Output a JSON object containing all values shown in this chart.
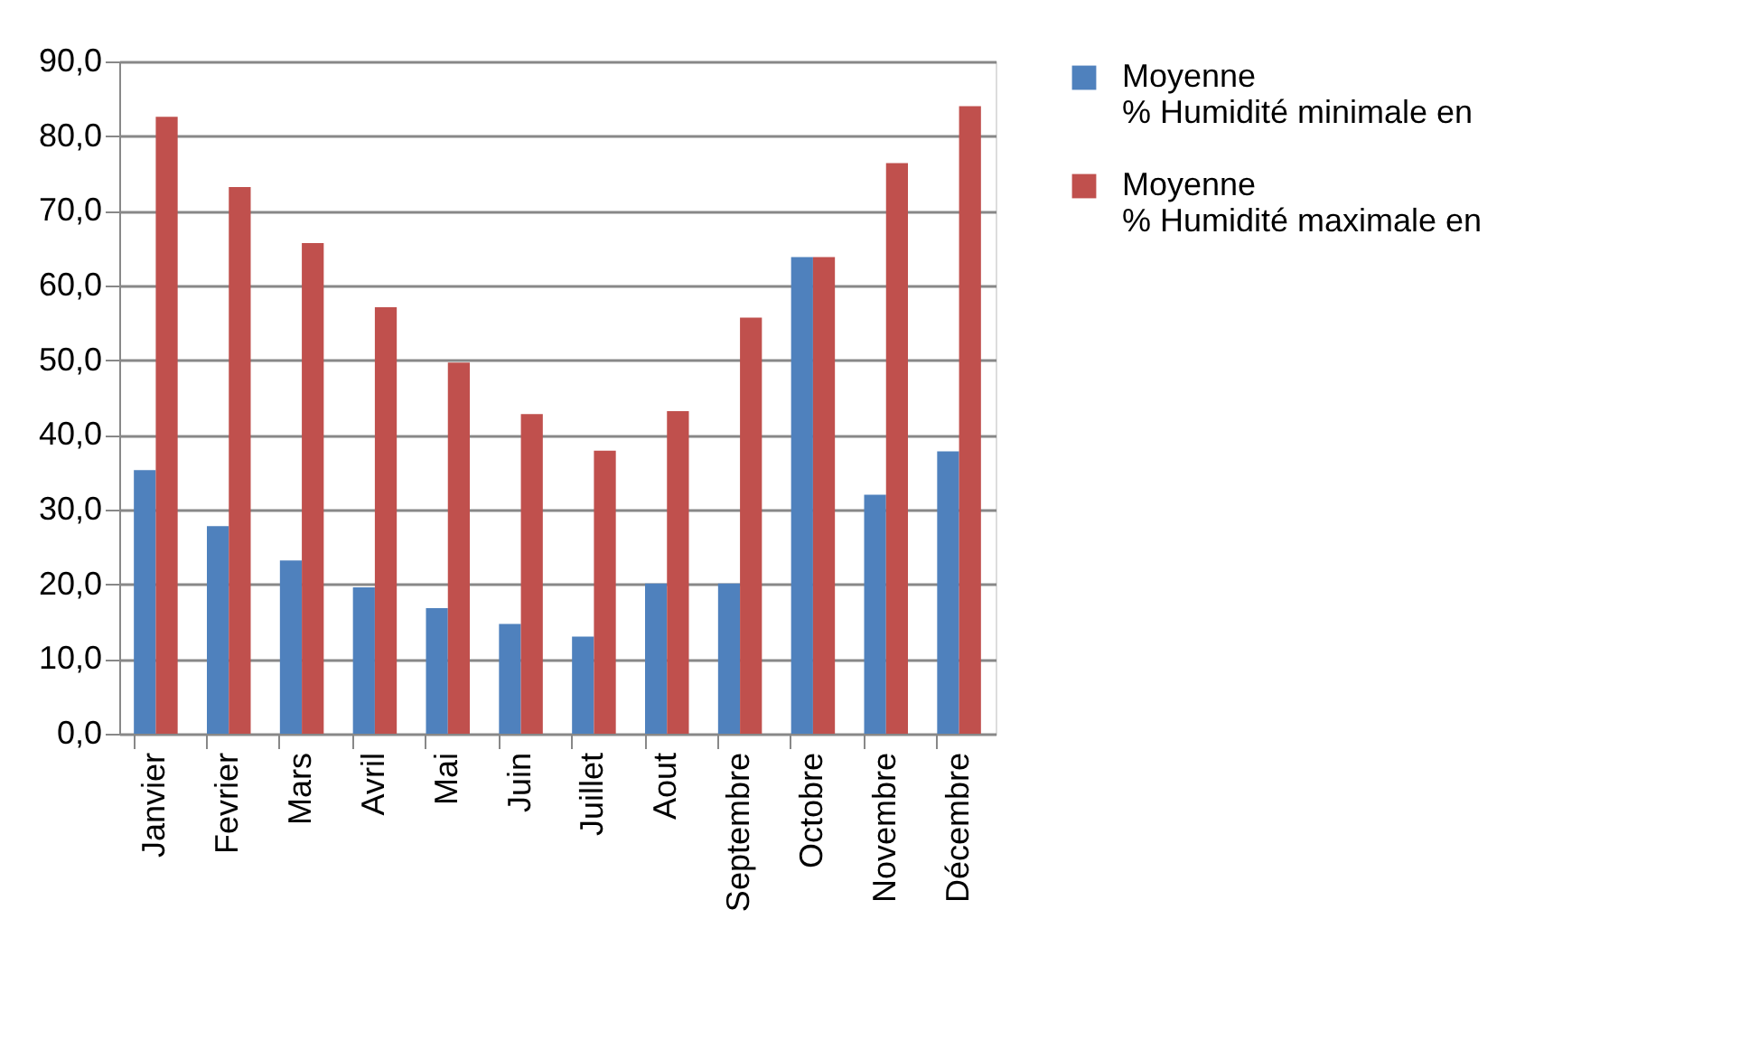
{
  "chart_data": {
    "type": "bar",
    "categories": [
      "Janvier",
      "Fevrier",
      "Mars",
      "Avril",
      "Mai",
      "Juin",
      "Juillet",
      "Aout",
      "Septembre",
      "Octobre",
      "Novembre",
      "Décembre"
    ],
    "series": [
      {
        "name": "Moyenne % Humidité minimale en",
        "color": "#4f81bd",
        "values": [
          35.3,
          27.8,
          23.2,
          19.6,
          16.8,
          14.7,
          13.0,
          20.1,
          20.1,
          63.8,
          32.0,
          37.8
        ]
      },
      {
        "name": "Moyenne % Humidité maximale en",
        "color": "#c0504d",
        "values": [
          82.6,
          73.2,
          65.7,
          57.1,
          49.7,
          42.8,
          37.9,
          43.2,
          55.7,
          63.8,
          76.4,
          84.0
        ]
      }
    ],
    "ylim": [
      0,
      90
    ],
    "yticks": [
      {
        "value": 0,
        "label": "0,0"
      },
      {
        "value": 10,
        "label": "10,0"
      },
      {
        "value": 20,
        "label": "20,0"
      },
      {
        "value": 30,
        "label": "30,0"
      },
      {
        "value": 40,
        "label": "40,0"
      },
      {
        "value": 50,
        "label": "50,0"
      },
      {
        "value": 60,
        "label": "60,0"
      },
      {
        "value": 70,
        "label": "70,0"
      },
      {
        "value": 80,
        "label": "80,0"
      },
      {
        "value": 90,
        "label": "90,0"
      }
    ],
    "grid": "y",
    "legend": "right"
  }
}
